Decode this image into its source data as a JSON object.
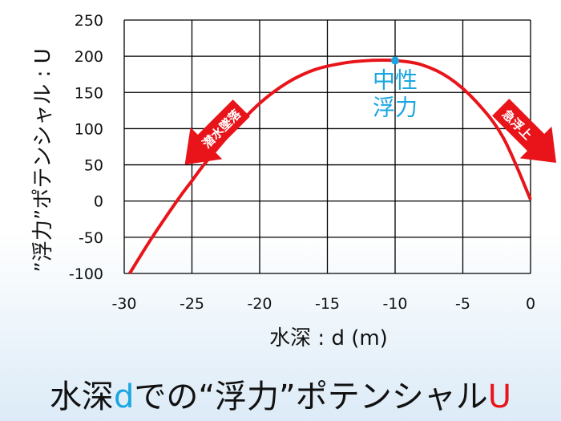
{
  "chart_data": {
    "type": "line",
    "xlabel": "水深 : d (m)",
    "ylabel": "”浮力”ポテンシャル : U",
    "xlim": [
      -30,
      0
    ],
    "ylim": [
      -100,
      250
    ],
    "xticks": [
      -30,
      -25,
      -20,
      -15,
      -10,
      -5,
      0
    ],
    "yticks": [
      -100,
      -50,
      0,
      50,
      100,
      150,
      200,
      250
    ],
    "grid": true,
    "series": [
      {
        "x": [
          -29.6,
          -28,
          -26,
          -25,
          -24,
          -22,
          -20,
          -18,
          -16,
          -14,
          -12,
          -10,
          -8,
          -6,
          -4,
          -2,
          0
        ],
        "y": [
          -100,
          -52,
          3,
          28,
          53,
          97,
          135,
          163,
          181,
          190,
          194,
          194,
          188,
          170,
          137,
          87,
          2
        ],
        "color": "#e8141a"
      }
    ],
    "annotations": {
      "neutral_point": {
        "x": -10,
        "y": 194,
        "label_line1": "中性",
        "label_line2": "浮力",
        "color": "#1aa6e0"
      },
      "left_arrow_label": "潜水墜落",
      "right_arrow_label": "急浮上"
    }
  },
  "caption": {
    "part1": "水深",
    "part2": "d",
    "part3": "での“浮力”ポテンシャル",
    "part4": "U"
  }
}
